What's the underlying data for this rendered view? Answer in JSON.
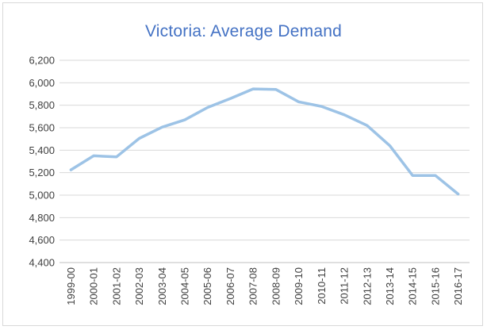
{
  "chart_data": {
    "type": "line",
    "title": "Victoria: Average Demand",
    "xlabel": "",
    "ylabel": "",
    "categories": [
      "1999-00",
      "2000-01",
      "2001-02",
      "2002-03",
      "2003-04",
      "2004-05",
      "2005-06",
      "2006-07",
      "2007-08",
      "2008-09",
      "2009-10",
      "2010-11",
      "2011-12",
      "2012-13",
      "2013-14",
      "2014-15",
      "2015-16",
      "2016-17"
    ],
    "series": [
      {
        "values": [
          5225,
          5350,
          5340,
          5505,
          5605,
          5670,
          5780,
          5860,
          5945,
          5940,
          5830,
          5790,
          5715,
          5620,
          5440,
          5175,
          5175,
          5010
        ],
        "color": "#9dc3e6"
      }
    ],
    "ylim": [
      4400,
      6200
    ],
    "yticks": [
      4400,
      4600,
      4800,
      5000,
      5200,
      5400,
      5600,
      5800,
      6000,
      6200
    ],
    "ytick_labels": [
      "4,400",
      "4,600",
      "4,800",
      "5,000",
      "5,200",
      "5,400",
      "5,600",
      "5,800",
      "6,000",
      "6,200"
    ],
    "grid": true,
    "legend": "none"
  }
}
